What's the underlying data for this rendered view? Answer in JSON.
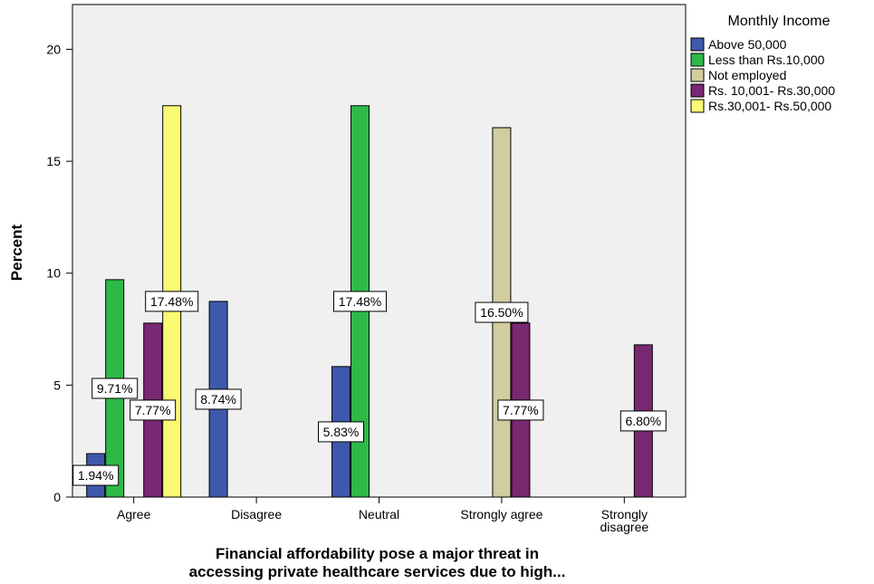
{
  "chart_data": {
    "type": "bar",
    "title": "",
    "ylabel": "Percent",
    "xlabel_lines": [
      "Financial affordability pose a major threat in",
      "accessing private healthcare services due to high..."
    ],
    "categories": [
      [
        "Agree"
      ],
      [
        "Disagree"
      ],
      [
        "Neutral"
      ],
      [
        "Strongly agree"
      ],
      [
        "Strongly",
        "disagree"
      ]
    ],
    "ylim": [
      0,
      22
    ],
    "yticks": [
      0,
      5,
      10,
      15,
      20
    ],
    "legend_title": "Monthly Income",
    "legend_position": "right",
    "grid": false,
    "plot_background": "#f0f0f0",
    "series": [
      {
        "name": "Above 50,000",
        "color": "#3e58ac",
        "values": [
          1.94,
          8.74,
          5.83,
          null,
          null
        ]
      },
      {
        "name": "Less than Rs.10,000",
        "color": "#2eb848",
        "values": [
          9.71,
          null,
          17.48,
          null,
          null
        ]
      },
      {
        "name": "Not employed",
        "color": "#d2cc9e",
        "values": [
          null,
          null,
          null,
          16.5,
          null
        ]
      },
      {
        "name": "Rs. 10,001- Rs.30,000",
        "color": "#7a2871",
        "values": [
          7.77,
          null,
          null,
          7.77,
          6.8
        ]
      },
      {
        "name": "Rs.30,001- Rs.50,000",
        "color": "#fbf873",
        "values": [
          17.48,
          null,
          null,
          null,
          null
        ]
      }
    ],
    "data_labels": [
      {
        "series": 0,
        "category": 0,
        "text": "1.94%"
      },
      {
        "series": 1,
        "category": 0,
        "text": "9.71%"
      },
      {
        "series": 3,
        "category": 0,
        "text": "7.77%"
      },
      {
        "series": 4,
        "category": 0,
        "text": "17.48%"
      },
      {
        "series": 0,
        "category": 1,
        "text": "8.74%"
      },
      {
        "series": 0,
        "category": 2,
        "text": "5.83%"
      },
      {
        "series": 1,
        "category": 2,
        "text": "17.48%"
      },
      {
        "series": 2,
        "category": 3,
        "text": "16.50%"
      },
      {
        "series": 3,
        "category": 3,
        "text": "7.77%"
      },
      {
        "series": 3,
        "category": 4,
        "text": "6.80%"
      }
    ]
  }
}
